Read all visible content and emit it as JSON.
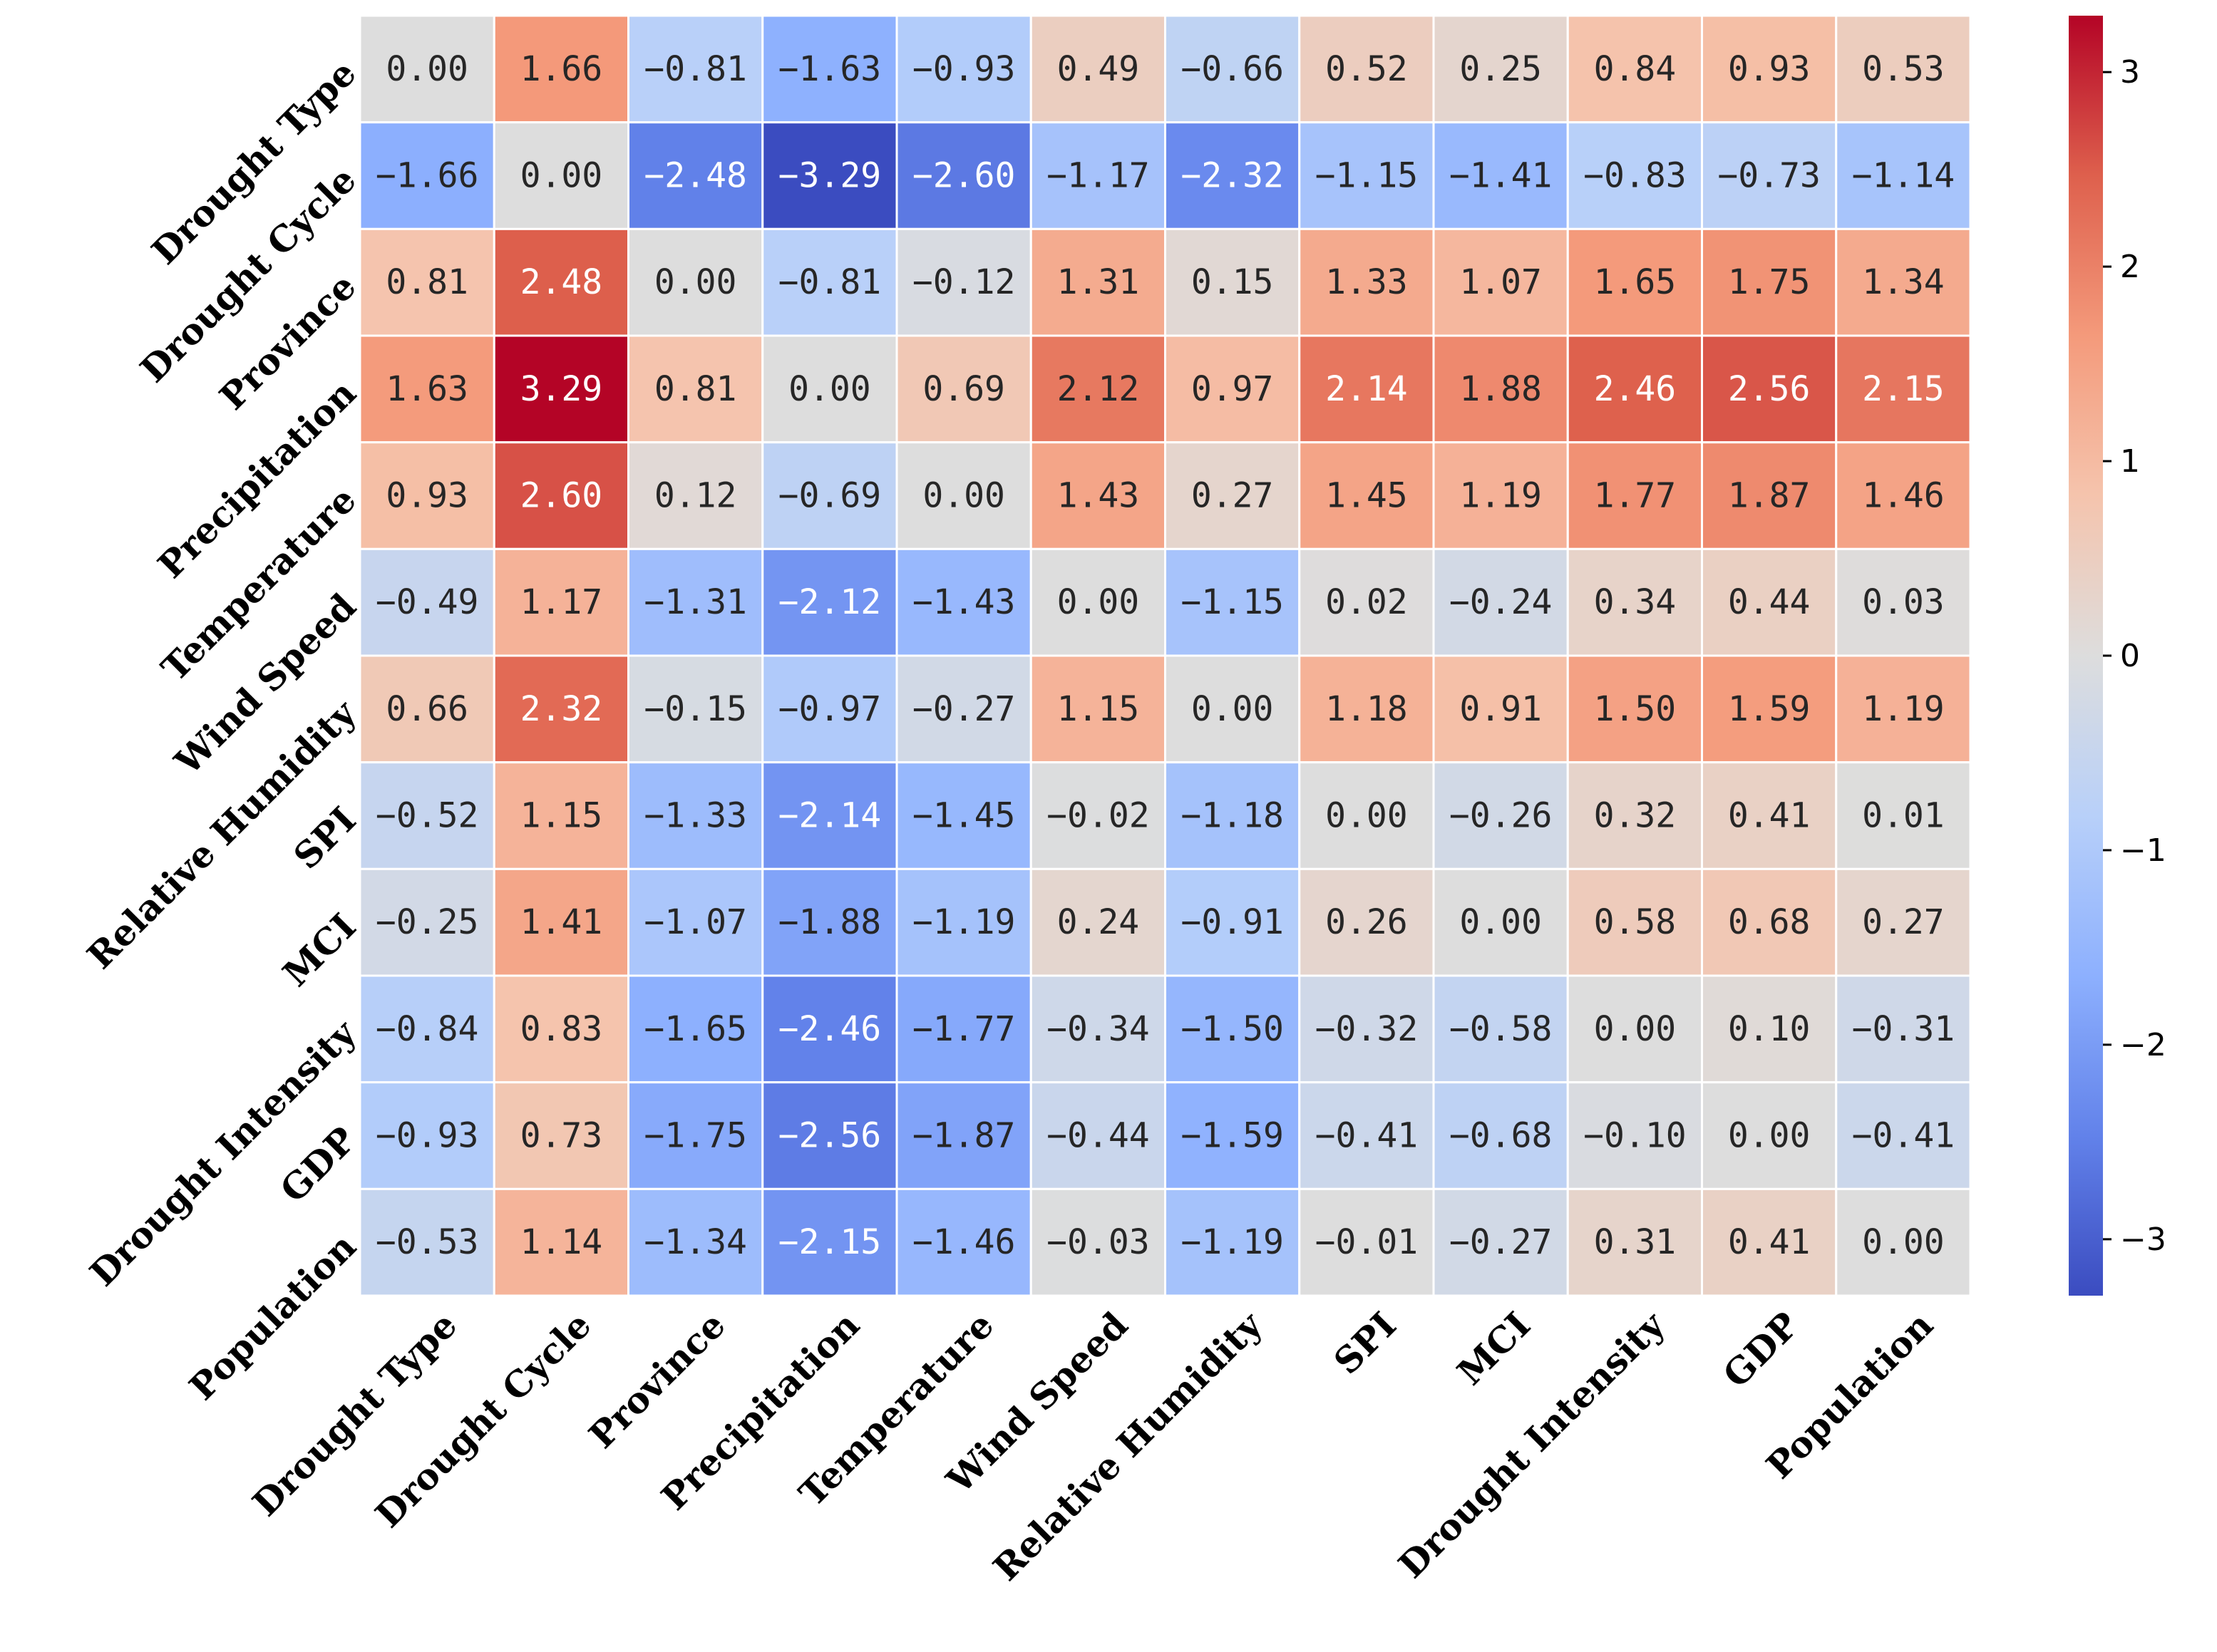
{
  "chart_data": {
    "type": "heatmap",
    "title": "",
    "xlabel": "",
    "ylabel": "",
    "rows": [
      "Drought Type",
      "Drought Cycle",
      "Province",
      "Precipitation",
      "Temperature",
      "Wind Speed",
      "Relative Humidity",
      "SPI",
      "MCI",
      "Drought Intensity",
      "GDP",
      "Population"
    ],
    "columns": [
      "Drought Type",
      "Drought Cycle",
      "Province",
      "Precipitation",
      "Temperature",
      "Wind Speed",
      "Relative Humidity",
      "SPI",
      "MCI",
      "Drought Intensity",
      "GDP",
      "Population"
    ],
    "values": [
      [
        0.0,
        1.66,
        -0.81,
        -1.63,
        -0.93,
        0.49,
        -0.66,
        0.52,
        0.25,
        0.84,
        0.93,
        0.53
      ],
      [
        -1.66,
        0.0,
        -2.48,
        -3.29,
        -2.6,
        -1.17,
        -2.32,
        -1.15,
        -1.41,
        -0.83,
        -0.73,
        -1.14
      ],
      [
        0.81,
        2.48,
        0.0,
        -0.81,
        -0.12,
        1.31,
        0.15,
        1.33,
        1.07,
        1.65,
        1.75,
        1.34
      ],
      [
        1.63,
        3.29,
        0.81,
        0.0,
        0.69,
        2.12,
        0.97,
        2.14,
        1.88,
        2.46,
        2.56,
        2.15
      ],
      [
        0.93,
        2.6,
        0.12,
        -0.69,
        0.0,
        1.43,
        0.27,
        1.45,
        1.19,
        1.77,
        1.87,
        1.46
      ],
      [
        -0.49,
        1.17,
        -1.31,
        -2.12,
        -1.43,
        0.0,
        -1.15,
        0.02,
        -0.24,
        0.34,
        0.44,
        0.03
      ],
      [
        0.66,
        2.32,
        -0.15,
        -0.97,
        -0.27,
        1.15,
        0.0,
        1.18,
        0.91,
        1.5,
        1.59,
        1.19
      ],
      [
        -0.52,
        1.15,
        -1.33,
        -2.14,
        -1.45,
        -0.02,
        -1.18,
        0.0,
        -0.26,
        0.32,
        0.41,
        0.01
      ],
      [
        -0.25,
        1.41,
        -1.07,
        -1.88,
        -1.19,
        0.24,
        -0.91,
        0.26,
        0.0,
        0.58,
        0.68,
        0.27
      ],
      [
        -0.84,
        0.83,
        -1.65,
        -2.46,
        -1.77,
        -0.34,
        -1.5,
        -0.32,
        -0.58,
        0.0,
        0.1,
        -0.31
      ],
      [
        -0.93,
        0.73,
        -1.75,
        -2.56,
        -1.87,
        -0.44,
        -1.59,
        -0.41,
        -0.68,
        -0.1,
        0.0,
        -0.41
      ],
      [
        -0.53,
        1.14,
        -1.34,
        -2.15,
        -1.46,
        -0.03,
        -1.19,
        -0.01,
        -0.27,
        0.31,
        0.41,
        0.0
      ]
    ],
    "colorbar": {
      "colormap": "coolwarm",
      "vmin": -3.29,
      "vmax": 3.29,
      "ticks": [
        -3,
        -2,
        -1,
        0,
        1,
        2,
        3
      ],
      "tick_labels": [
        "−3",
        "−2",
        "−1",
        "0",
        "1",
        "2",
        "3"
      ]
    },
    "colors": {
      "cold": "#3b4cc0",
      "neutral": "#dddddd",
      "warm": "#b40426",
      "grid_line": "#ffffff"
    }
  }
}
